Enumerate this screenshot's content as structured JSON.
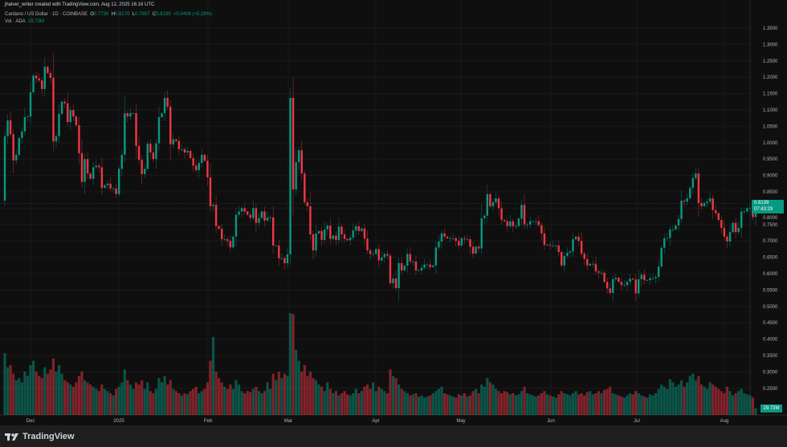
{
  "header": {
    "attribution": "jhalver_writer created with TradingView.com, Aug 12, 2025 16:16 UTC",
    "symbol": "Cardano / US Dollar · 1D · COINBASE",
    "o_label": "O",
    "o_value": "0.7730",
    "h_label": "H",
    "h_value": "0.8170",
    "l_label": "L",
    "l_value": "0.7657",
    "c_label": "C",
    "c_value": "0.8139",
    "change": "+0.0409 (+5.29%)",
    "vol_label": "Vol · ADA",
    "vol_value": "29.73M"
  },
  "price_tag": {
    "price": "0.8139",
    "countdown": "07:43:29"
  },
  "volume_tag": "29.73M",
  "footer": {
    "logo_text": "TradingView"
  },
  "colors": {
    "up": "#089981",
    "down": "#f23645",
    "background": "#0f0f0f"
  },
  "chart_data": {
    "type": "candlestick",
    "title": "Cardano / US Dollar · 1D · COINBASE",
    "ylim": [
      0.23,
      1.37
    ],
    "y_ticks": [
      "1.3500",
      "1.3000",
      "1.2500",
      "1.2000",
      "1.1500",
      "1.1000",
      "1.0500",
      "1.0000",
      "0.9500",
      "0.9000",
      "0.8500",
      "0.8000",
      "0.7500",
      "0.7000",
      "0.6500",
      "0.6000",
      "0.5500",
      "0.5000",
      "0.4500",
      "0.4000",
      "0.3500",
      "0.3000",
      "0.2500"
    ],
    "x_ticks": [
      "Dec",
      "2025",
      "Feb",
      "Mar",
      "Apr",
      "May",
      "Jun",
      "Jul",
      "Aug"
    ],
    "first_open": 0.823,
    "close": [
      1.02,
      1.068,
      1.026,
      0.946,
      0.963,
      1.014,
      1.034,
      1.078,
      1.08,
      1.154,
      1.205,
      1.196,
      1.19,
      1.164,
      1.232,
      1.213,
      1.198,
      1.004,
      1.02,
      1.088,
      1.125,
      1.12,
      1.063,
      1.1,
      1.08,
      1.053,
      0.968,
      0.88,
      0.95,
      0.906,
      0.89,
      0.925,
      0.93,
      0.925,
      0.862,
      0.87,
      0.875,
      0.86,
      0.86,
      0.843,
      0.92,
      0.963,
      1.09,
      1.08,
      1.09,
      1.09,
      0.99,
      0.948,
      0.904,
      0.92,
      0.997,
      0.97,
      0.95,
      0.998,
      1.078,
      1.09,
      1.137,
      1.11,
      0.995,
      1.01,
      1.005,
      0.98,
      0.98,
      0.97,
      0.975,
      0.953,
      0.93,
      0.916,
      0.938,
      0.963,
      0.945,
      0.894,
      0.806,
      0.81,
      0.745,
      0.737,
      0.705,
      0.705,
      0.7,
      0.68,
      0.713,
      0.78,
      0.79,
      0.8,
      0.79,
      0.78,
      0.77,
      0.8,
      0.755,
      0.77,
      0.79,
      0.762,
      0.772,
      0.772,
      0.686,
      0.686,
      0.647,
      0.647,
      0.632,
      0.659,
      1.137,
      0.857,
      0.94,
      0.977,
      0.906,
      0.818,
      0.806,
      0.72,
      0.671,
      0.723,
      0.73,
      0.703,
      0.735,
      0.747,
      0.706,
      0.716,
      0.703,
      0.744,
      0.72,
      0.706,
      0.702,
      0.71,
      0.732,
      0.745,
      0.73,
      0.738,
      0.707,
      0.671,
      0.66,
      0.66,
      0.675,
      0.64,
      0.65,
      0.66,
      0.655,
      0.571,
      0.585,
      0.556,
      0.632,
      0.61,
      0.624,
      0.66,
      0.637,
      0.637,
      0.61,
      0.61,
      0.618,
      0.628,
      0.628,
      0.62,
      0.625,
      0.68,
      0.698,
      0.723,
      0.713,
      0.708,
      0.708,
      0.708,
      0.7,
      0.686,
      0.708,
      0.705,
      0.705,
      0.682,
      0.661,
      0.683,
      0.677,
      0.769,
      0.777,
      0.843,
      0.806,
      0.818,
      0.83,
      0.8,
      0.764,
      0.76,
      0.745,
      0.76,
      0.745,
      0.745,
      0.768,
      0.81,
      0.75,
      0.75,
      0.76,
      0.76,
      0.76,
      0.748,
      0.723,
      0.688,
      0.688,
      0.686,
      0.686,
      0.686,
      0.666,
      0.625,
      0.654,
      0.664,
      0.668,
      0.705,
      0.713,
      0.7,
      0.661,
      0.645,
      0.625,
      0.63,
      0.63,
      0.607,
      0.603,
      0.603,
      0.575,
      0.555,
      0.541,
      0.583,
      0.587,
      0.575,
      0.565,
      0.565,
      0.575,
      0.585,
      0.582,
      0.54,
      0.583,
      0.597,
      0.58,
      0.58,
      0.586,
      0.586,
      0.59,
      0.622,
      0.679,
      0.708,
      0.709,
      0.735,
      0.735,
      0.747,
      0.767,
      0.823,
      0.82,
      0.83,
      0.862,
      0.892,
      0.906,
      0.816,
      0.806,
      0.816,
      0.82,
      0.83,
      0.794,
      0.785,
      0.764,
      0.74,
      0.713,
      0.698,
      0.727,
      0.755,
      0.727,
      0.74,
      0.79,
      0.79,
      0.8,
      0.8,
      0.773,
      0.8139
    ],
    "volume_m": [
      285,
      220,
      230,
      190,
      160,
      170,
      150,
      200,
      180,
      230,
      250,
      200,
      180,
      170,
      220,
      190,
      210,
      260,
      200,
      230,
      190,
      160,
      150,
      140,
      130,
      150,
      180,
      200,
      160,
      150,
      140,
      130,
      120,
      110,
      140,
      120,
      110,
      100,
      90,
      120,
      130,
      150,
      210,
      160,
      140,
      120,
      150,
      140,
      160,
      120,
      150,
      110,
      100,
      120,
      170,
      150,
      180,
      140,
      160,
      120,
      110,
      100,
      90,
      100,
      95,
      110,
      120,
      130,
      100,
      110,
      120,
      150,
      250,
      360,
      200,
      170,
      150,
      130,
      120,
      140,
      120,
      160,
      140,
      110,
      100,
      110,
      105,
      120,
      130,
      110,
      100,
      110,
      150,
      120,
      190,
      160,
      200,
      170,
      190,
      180,
      470,
      465,
      300,
      250,
      200,
      230,
      180,
      200,
      170,
      160,
      140,
      130,
      110,
      150,
      120,
      100,
      110,
      90,
      100,
      110,
      95,
      90,
      100,
      120,
      100,
      110,
      130,
      140,
      120,
      150,
      110,
      130,
      120,
      110,
      100,
      210,
      180,
      170,
      140,
      120,
      110,
      100,
      90,
      95,
      100,
      85,
      90,
      80,
      85,
      90,
      100,
      110,
      120,
      130,
      100,
      95,
      90,
      85,
      80,
      95,
      90,
      100,
      85,
      90,
      110,
      120,
      100,
      140,
      130,
      170,
      150,
      140,
      120,
      110,
      100,
      110,
      105,
      95,
      100,
      90,
      95,
      110,
      130,
      100,
      95,
      90,
      85,
      90,
      100,
      110,
      95,
      90,
      85,
      80,
      95,
      110,
      100,
      95,
      90,
      100,
      110,
      95,
      100,
      90,
      105,
      110,
      95,
      100,
      110,
      100,
      115,
      120,
      130,
      100,
      95,
      90,
      85,
      80,
      90,
      100,
      95,
      110,
      100,
      90,
      85,
      80,
      95,
      90,
      100,
      120,
      140,
      130,
      120,
      165,
      150,
      130,
      140,
      160,
      130,
      150,
      180,
      190,
      160,
      180,
      140,
      130,
      120,
      150,
      140,
      130,
      120,
      110,
      100,
      130,
      110,
      90,
      100,
      110,
      120,
      100,
      95,
      90,
      80,
      29.73
    ]
  }
}
